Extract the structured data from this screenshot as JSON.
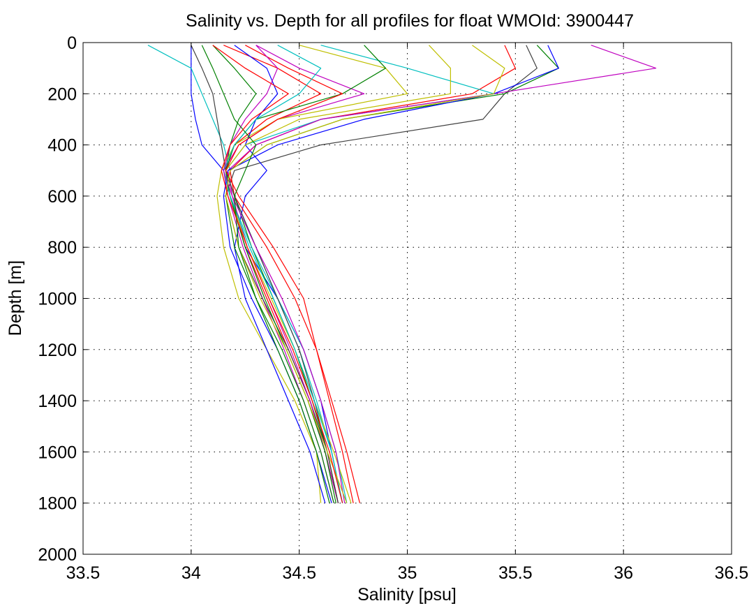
{
  "chart_data": {
    "type": "line",
    "title": "Salinity vs. Depth for all profiles for float WMOId: 3900447",
    "xlabel": "Salinity [psu]",
    "ylabel": "Depth [m]",
    "xlim": [
      33.5,
      36.5
    ],
    "ylim": [
      0,
      2000
    ],
    "y_reversed": true,
    "grid": "dotted",
    "legend": "none",
    "x_ticks": [
      33.5,
      34,
      34.5,
      35,
      35.5,
      36,
      36.5
    ],
    "x_tick_labels": [
      "33.5",
      "34",
      "34.5",
      "35",
      "35.5",
      "36",
      "36.5"
    ],
    "y_ticks": [
      0,
      200,
      400,
      600,
      800,
      1000,
      1200,
      1400,
      1600,
      1800,
      2000
    ],
    "y_tick_labels": [
      "0",
      "200",
      "400",
      "600",
      "800",
      "1000",
      "1200",
      "1400",
      "1600",
      "1800",
      "2000"
    ],
    "colors": [
      "#0000ff",
      "#008000",
      "#ff0000",
      "#00bfbf",
      "#bf00bf",
      "#bfbf00",
      "#404040"
    ],
    "depths": [
      10,
      100,
      200,
      300,
      400,
      500,
      600,
      800,
      1000,
      1200,
      1400,
      1600,
      1800
    ],
    "profiles": [
      {
        "color": "#0000ff",
        "salinity": [
          34.0,
          34.0,
          34.0,
          34.02,
          34.05,
          34.15,
          34.18,
          34.25,
          34.4,
          34.52,
          34.6,
          34.65,
          34.7
        ]
      },
      {
        "color": "#008000",
        "salinity": [
          34.1,
          34.2,
          34.3,
          34.22,
          34.18,
          34.16,
          34.2,
          34.28,
          34.38,
          34.48,
          34.56,
          34.63,
          34.68
        ]
      },
      {
        "color": "#ff0000",
        "salinity": [
          34.15,
          34.4,
          34.6,
          34.35,
          34.2,
          34.15,
          34.18,
          34.25,
          34.35,
          34.45,
          34.55,
          34.62,
          34.68
        ]
      },
      {
        "color": "#00bfbf",
        "salinity": [
          33.8,
          34.0,
          34.05,
          34.1,
          34.15,
          34.18,
          34.2,
          34.3,
          34.4,
          34.5,
          34.58,
          34.65,
          34.7
        ]
      },
      {
        "color": "#bf00bf",
        "salinity": [
          34.3,
          34.5,
          34.8,
          34.4,
          34.22,
          34.15,
          34.17,
          34.24,
          34.33,
          34.43,
          34.52,
          34.6,
          34.66
        ]
      },
      {
        "color": "#bfbf00",
        "salinity": [
          34.5,
          34.9,
          35.0,
          34.4,
          34.2,
          34.14,
          34.12,
          34.15,
          34.22,
          34.35,
          34.48,
          34.58,
          34.6
        ]
      },
      {
        "color": "#404040",
        "salinity": [
          35.55,
          35.6,
          35.45,
          35.35,
          34.6,
          34.2,
          34.16,
          34.22,
          34.33,
          34.45,
          34.55,
          34.63,
          34.68
        ]
      },
      {
        "color": "#0000ff",
        "salinity": [
          34.2,
          34.35,
          34.4,
          34.3,
          34.25,
          34.35,
          34.25,
          34.2,
          34.25,
          34.35,
          34.45,
          34.55,
          34.62
        ]
      },
      {
        "color": "#008000",
        "salinity": [
          35.6,
          35.7,
          35.45,
          34.7,
          34.35,
          34.18,
          34.16,
          34.2,
          34.3,
          34.42,
          34.52,
          34.6,
          34.66
        ]
      },
      {
        "color": "#ff0000",
        "salinity": [
          35.45,
          35.5,
          35.3,
          34.6,
          34.3,
          34.18,
          34.2,
          34.35,
          34.48,
          34.58,
          34.65,
          34.72,
          34.78
        ]
      },
      {
        "color": "#00bfbf",
        "salinity": [
          34.6,
          35.0,
          35.4,
          34.6,
          34.25,
          34.16,
          34.18,
          34.28,
          34.4,
          34.52,
          34.6,
          34.67,
          34.72
        ]
      },
      {
        "color": "#bf00bf",
        "salinity": [
          35.85,
          36.15,
          35.4,
          34.6,
          34.3,
          34.17,
          34.19,
          34.26,
          34.36,
          34.46,
          34.55,
          34.62,
          34.68
        ]
      },
      {
        "color": "#bfbf00",
        "salinity": [
          35.1,
          35.2,
          35.2,
          34.5,
          34.25,
          34.16,
          34.18,
          34.26,
          34.37,
          34.48,
          34.57,
          34.66,
          34.74
        ]
      },
      {
        "color": "#404040",
        "salinity": [
          34.0,
          34.05,
          34.1,
          34.12,
          34.14,
          34.16,
          34.2,
          34.3,
          34.4,
          34.5,
          34.57,
          34.63,
          34.68
        ]
      },
      {
        "color": "#0000ff",
        "salinity": [
          35.65,
          35.7,
          35.4,
          34.8,
          34.4,
          34.17,
          34.15,
          34.18,
          34.28,
          34.4,
          34.5,
          34.58,
          34.65
        ]
      },
      {
        "color": "#008000",
        "salinity": [
          34.8,
          34.9,
          34.7,
          34.3,
          34.2,
          34.16,
          34.18,
          34.25,
          34.34,
          34.44,
          34.54,
          34.62,
          34.67
        ]
      },
      {
        "color": "#ff0000",
        "salinity": [
          34.25,
          34.45,
          34.7,
          34.4,
          34.22,
          34.16,
          34.22,
          34.38,
          34.52,
          34.58,
          34.64,
          34.7,
          34.75
        ]
      },
      {
        "color": "#00bfbf",
        "salinity": [
          34.4,
          34.6,
          34.5,
          34.3,
          34.2,
          34.15,
          34.18,
          34.27,
          34.38,
          34.48,
          34.57,
          34.65,
          34.7
        ]
      },
      {
        "color": "#bf00bf",
        "salinity": [
          34.3,
          34.4,
          34.35,
          34.25,
          34.18,
          34.15,
          34.19,
          34.3,
          34.42,
          34.52,
          34.6,
          34.67,
          34.71
        ]
      },
      {
        "color": "#bfbf00",
        "salinity": [
          35.3,
          35.45,
          35.4,
          34.7,
          34.35,
          34.18,
          34.16,
          34.22,
          34.32,
          34.44,
          34.54,
          34.63,
          34.72
        ]
      },
      {
        "color": "#008000",
        "salinity": [
          34.05,
          34.1,
          34.15,
          34.2,
          34.3,
          34.25,
          34.2,
          34.22,
          34.3,
          34.4,
          34.5,
          34.58,
          34.64
        ]
      },
      {
        "color": "#ff0000",
        "salinity": [
          34.1,
          34.25,
          34.45,
          34.28,
          34.18,
          34.14,
          34.17,
          34.26,
          34.36,
          34.47,
          34.56,
          34.64,
          34.7
        ]
      }
    ]
  }
}
